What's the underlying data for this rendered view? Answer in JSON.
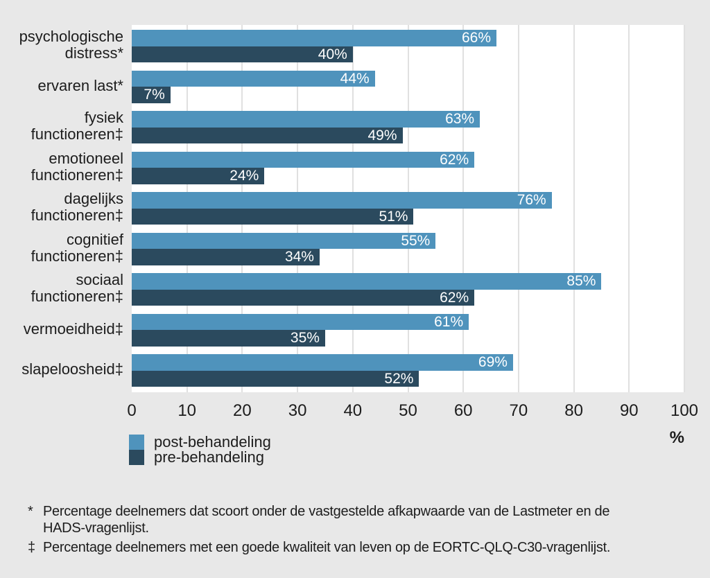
{
  "chart_data": {
    "type": "bar",
    "orientation": "horizontal",
    "title": "",
    "xlabel": "%",
    "xlim": [
      0,
      100
    ],
    "xticks": [
      0,
      10,
      20,
      30,
      40,
      50,
      60,
      70,
      80,
      90,
      100
    ],
    "grid": "vertical gridlines every 10 units",
    "legend_position": "bottom-left",
    "value_suffix": "%",
    "categories": [
      "psychologische distress*",
      "ervaren last*",
      "fysiek functioneren‡",
      "emotioneel functioneren‡",
      "dagelijks functioneren‡",
      "cognitief functioneren‡",
      "sociaal functioneren‡",
      "vermoeidheid‡",
      "slapeloosheid‡"
    ],
    "label_lines": [
      [
        "psychologische",
        "distress*"
      ],
      [
        "ervaren last*"
      ],
      [
        "fysiek",
        "functioneren‡"
      ],
      [
        "emotioneel",
        "functioneren‡"
      ],
      [
        "dagelijks",
        "functioneren‡"
      ],
      [
        "cognitief",
        "functioneren‡"
      ],
      [
        "sociaal",
        "functioneren‡"
      ],
      [
        "vermoeidheid‡"
      ],
      [
        "slapeloosheid‡"
      ]
    ],
    "series": [
      {
        "name": "post-behandeling",
        "color": "#4f93bc",
        "values": [
          66,
          44,
          63,
          62,
          76,
          55,
          85,
          61,
          69
        ]
      },
      {
        "name": "pre-behandeling",
        "color": "#2b4a5e",
        "values": [
          40,
          7,
          49,
          24,
          51,
          34,
          62,
          35,
          52
        ]
      }
    ]
  },
  "footnotes": [
    {
      "symbol": "*",
      "lines": [
        "Percentage deelnemers dat scoort onder de vastgestelde afkapwaarde van de Lastmeter en de",
        "HADS-vragenlijst."
      ],
      "text": "Percentage deelnemers dat scoort onder de vastgestelde afkapwaarde van de Lastmeter en de HADS-vragenlijst."
    },
    {
      "symbol": "‡",
      "lines": [
        "Percentage deelnemers met een goede kwaliteit van leven op de EORTC-QLQ-C30-vragenlijst."
      ],
      "text": "Percentage deelnemers met een goede kwaliteit van leven op de EORTC-QLQ-C30-vragenlijst."
    }
  ],
  "colors": {
    "background": "#e8e8e8",
    "plot_background": "#ffffff",
    "gridline": "#e0e0e0",
    "post_behandeling": "#4f93bc",
    "pre_behandeling": "#2b4a5e",
    "text": "#1c1c1c",
    "bar_value_text": "#ffffff"
  }
}
